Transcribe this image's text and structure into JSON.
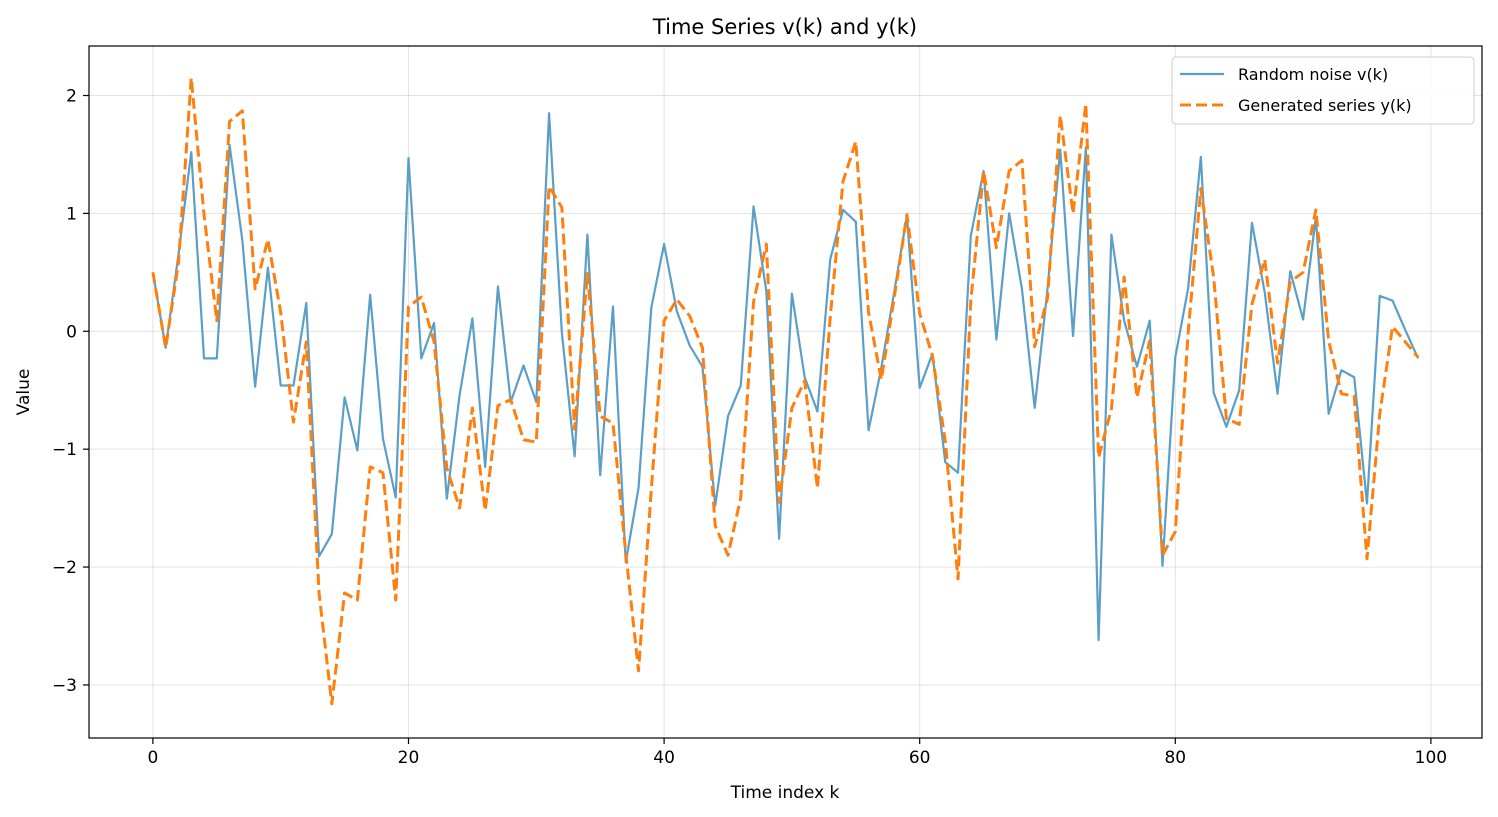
{
  "chart_data": {
    "type": "line",
    "title": "Time Series v(k) and y(k)",
    "xlabel": "Time index k",
    "ylabel": "Value",
    "xlim": [
      -5,
      104
    ],
    "ylim": [
      -3.45,
      2.42
    ],
    "xticks": [
      0,
      20,
      40,
      60,
      80,
      100
    ],
    "yticks": [
      -3,
      -2,
      -1,
      0,
      1,
      2
    ],
    "xtick_labels": [
      "0",
      "20",
      "40",
      "60",
      "80",
      "100"
    ],
    "ytick_labels": [
      "−3",
      "−2",
      "−1",
      "0",
      "1",
      "2"
    ],
    "grid": true,
    "legend_position": "top-right",
    "series": [
      {
        "name": "Random noise v(k)",
        "color": "#5b9fc9",
        "style": "solid",
        "values": [
          0.5,
          -0.14,
          0.65,
          1.52,
          -0.23,
          -0.23,
          1.58,
          0.77,
          -0.47,
          0.54,
          -0.46,
          -0.46,
          0.24,
          -1.91,
          -1.72,
          -0.56,
          -1.01,
          0.31,
          -0.91,
          -1.41,
          1.47,
          -0.23,
          0.07,
          -1.42,
          -0.54,
          0.11,
          -1.15,
          0.38,
          -0.6,
          -0.29,
          -0.6,
          1.85,
          -0.01,
          -1.06,
          0.82,
          -1.22,
          0.21,
          -1.96,
          -1.33,
          0.2,
          0.74,
          0.17,
          -0.12,
          -0.3,
          -1.48,
          -0.72,
          -0.46,
          1.06,
          0.34,
          -1.76,
          0.32,
          -0.39,
          -0.68,
          0.61,
          1.03,
          0.93,
          -0.84,
          -0.31,
          0.33,
          0.98,
          -0.48,
          -0.19,
          -1.11,
          -1.2,
          0.81,
          1.36,
          -0.07,
          1.0,
          0.36,
          -0.65,
          0.36,
          1.54,
          -0.04,
          1.56,
          -2.62,
          0.82,
          0.09,
          -0.3,
          0.09,
          -1.99,
          -0.22,
          0.36,
          1.48,
          -0.52,
          -0.81,
          -0.5,
          0.92,
          0.33,
          -0.53,
          0.51,
          0.1,
          0.97,
          -0.7,
          -0.33,
          -0.39,
          -1.46,
          0.3,
          0.26,
          0.01,
          -0.23
        ]
      },
      {
        "name": "Generated series y(k)",
        "color": "#ff7f0e",
        "style": "dashed",
        "values": [
          0.5,
          -0.14,
          0.58,
          2.15,
          0.99,
          0.09,
          1.78,
          1.87,
          0.36,
          0.78,
          0.16,
          -0.77,
          -0.09,
          -2.22,
          -3.16,
          -2.22,
          -2.28,
          -1.15,
          -1.2,
          -2.28,
          0.21,
          0.29,
          -0.09,
          -1.16,
          -1.5,
          -0.65,
          -1.52,
          -0.63,
          -0.58,
          -0.92,
          -0.94,
          1.23,
          1.05,
          -0.83,
          0.49,
          -0.72,
          -0.78,
          -1.88,
          -2.88,
          -1.34,
          0.09,
          0.27,
          0.13,
          -0.14,
          -1.65,
          -1.9,
          -1.41,
          0.25,
          0.74,
          -1.45,
          -0.65,
          -0.42,
          -1.33,
          0.12,
          1.27,
          1.61,
          0.16,
          -0.41,
          0.28,
          0.99,
          0.15,
          -0.21,
          -0.93,
          -2.1,
          0.26,
          1.36,
          0.71,
          1.36,
          1.45,
          -0.13,
          0.28,
          1.83,
          1.0,
          1.93,
          -1.07,
          -0.66,
          0.46,
          -0.56,
          -0.08,
          -1.9,
          -1.7,
          -0.02,
          1.21,
          0.46,
          -0.74,
          -0.79,
          0.23,
          0.61,
          -0.27,
          0.42,
          0.5,
          1.03,
          -0.08,
          -0.53,
          -0.55,
          -1.93,
          -0.7,
          0.04,
          -0.09,
          -0.22
        ]
      }
    ]
  }
}
